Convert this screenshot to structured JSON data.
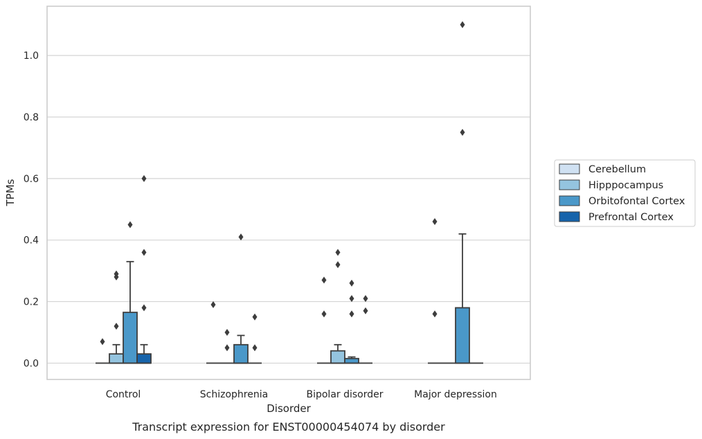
{
  "caption": "Transcript expression for ENST00000454074 by disorder",
  "chart_data": {
    "type": "box",
    "title": "",
    "xlabel": "Disorder",
    "ylabel": "TPMs",
    "ylim": [
      -0.053,
      1.16
    ],
    "yticks": [
      0.0,
      0.2,
      0.4,
      0.6,
      0.8,
      1.0
    ],
    "ytick_labels": [
      "0.0",
      "0.2",
      "0.4",
      "0.6",
      "0.8",
      "1.0"
    ],
    "grid": "horizontal",
    "legend_position": "right",
    "categories": [
      "Control",
      "Schizophrenia",
      "Bipolar disorder",
      "Major depression"
    ],
    "series": [
      {
        "name": "Cerebellum",
        "color": "#d0e1f2",
        "boxes": [
          {
            "category": "Control",
            "q1": 0,
            "median": 0,
            "q3": 0,
            "whisker_low": 0,
            "whisker_high": 0,
            "outliers": [
              0.07
            ]
          },
          {
            "category": "Schizophrenia",
            "q1": 0,
            "median": 0,
            "q3": 0,
            "whisker_low": 0,
            "whisker_high": 0,
            "outliers": [
              0.19
            ]
          },
          {
            "category": "Bipolar disorder",
            "q1": 0,
            "median": 0,
            "q3": 0,
            "whisker_low": 0,
            "whisker_high": 0,
            "outliers": [
              0.27,
              0.16
            ]
          },
          {
            "category": "Major depression",
            "q1": 0,
            "median": 0,
            "q3": 0,
            "whisker_low": 0,
            "whisker_high": 0,
            "outliers": [
              0.46,
              0.16
            ]
          }
        ]
      },
      {
        "name": "Hipppocampus",
        "color": "#94c4df",
        "boxes": [
          {
            "category": "Control",
            "q1": 0,
            "median": 0,
            "q3": 0.03,
            "whisker_low": 0,
            "whisker_high": 0.06,
            "outliers": [
              0.29,
              0.28,
              0.12
            ]
          },
          {
            "category": "Schizophrenia",
            "q1": 0,
            "median": 0,
            "q3": 0,
            "whisker_low": 0,
            "whisker_high": 0,
            "outliers": [
              0.1,
              0.05
            ]
          },
          {
            "category": "Bipolar disorder",
            "q1": 0,
            "median": 0,
            "q3": 0.04,
            "whisker_low": 0,
            "whisker_high": 0.06,
            "outliers": [
              0.36,
              0.32
            ]
          },
          {
            "category": "Major depression",
            "q1": 0,
            "median": 0,
            "q3": 0,
            "whisker_low": 0,
            "whisker_high": 0,
            "outliers": []
          }
        ]
      },
      {
        "name": "Orbitofontal Cortex",
        "color": "#4a98c9",
        "boxes": [
          {
            "category": "Control",
            "q1": 0,
            "median": 0,
            "q3": 0.165,
            "whisker_low": 0,
            "whisker_high": 0.33,
            "outliers": [
              0.45
            ]
          },
          {
            "category": "Schizophrenia",
            "q1": 0,
            "median": 0,
            "q3": 0.06,
            "whisker_low": 0,
            "whisker_high": 0.09,
            "outliers": [
              0.41
            ]
          },
          {
            "category": "Bipolar disorder",
            "q1": 0,
            "median": 0,
            "q3": 0.015,
            "whisker_low": 0,
            "whisker_high": 0.02,
            "outliers": [
              0.26,
              0.21,
              0.16
            ]
          },
          {
            "category": "Major depression",
            "q1": 0,
            "median": 0,
            "q3": 0.18,
            "whisker_low": 0,
            "whisker_high": 0.42,
            "outliers": [
              1.1,
              0.75
            ]
          }
        ]
      },
      {
        "name": "Prefrontal Cortex",
        "color": "#1764ab",
        "boxes": [
          {
            "category": "Control",
            "q1": 0,
            "median": 0,
            "q3": 0.03,
            "whisker_low": 0,
            "whisker_high": 0.06,
            "outliers": [
              0.6,
              0.36,
              0.18
            ]
          },
          {
            "category": "Schizophrenia",
            "q1": 0,
            "median": 0,
            "q3": 0,
            "whisker_low": 0,
            "whisker_high": 0,
            "outliers": [
              0.15,
              0.05
            ]
          },
          {
            "category": "Bipolar disorder",
            "q1": 0,
            "median": 0,
            "q3": 0,
            "whisker_low": 0,
            "whisker_high": 0,
            "outliers": [
              0.21,
              0.17
            ]
          },
          {
            "category": "Major depression",
            "q1": 0,
            "median": 0,
            "q3": 0,
            "whisker_low": 0,
            "whisker_high": 0,
            "outliers": []
          }
        ]
      }
    ]
  }
}
